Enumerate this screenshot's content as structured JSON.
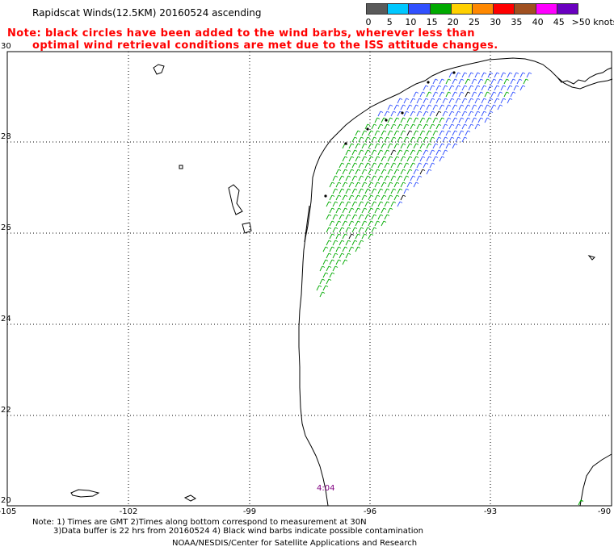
{
  "title": "Rapidscat Winds(12.5KM) 20160524 ascending",
  "note_line1": "Note: black circles have been added to the wind barbs, wherever less than",
  "note_line2": "optimal wind retrieval conditions are met due to the ISS attitude changes.",
  "legend": {
    "labels": [
      "0",
      "5",
      "10",
      "15",
      "20",
      "25",
      "30",
      "35",
      "40",
      "45",
      ">50 knots"
    ],
    "colors": [
      "#5a5a5a",
      "#00c8ff",
      "#3050ff",
      "#00aa00",
      "#ffd000",
      "#ff8800",
      "#ff0000",
      "#a05020",
      "#ff00ff",
      "#6a00c0"
    ]
  },
  "lat_labels": [
    "30",
    "28",
    "26",
    "24",
    "22",
    "20"
  ],
  "lon_labels": [
    "-105",
    "-102",
    "-99",
    "-96",
    "-93",
    "-90"
  ],
  "time_label": "4:04",
  "footer_line1": "Note: 1) Times are GMT 2)Times along bottom correspond to measurement at 30N",
  "footer_line2": "3)Data buffer is 22 hrs from 20160524 4) Black wind barbs indicate possible contamination",
  "footer_line3": "NOAA/NESDIS/Center for Satellite Applications and Research"
}
